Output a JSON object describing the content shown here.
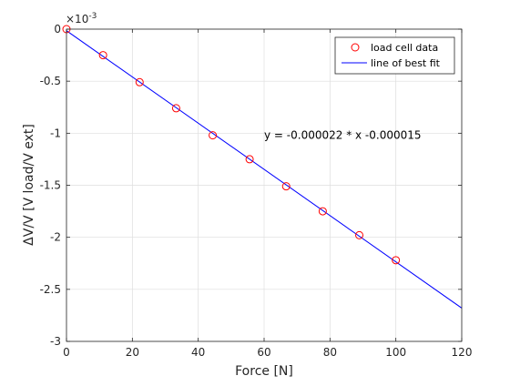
{
  "chart_data": {
    "type": "scatter",
    "xlabel": "Force [N]",
    "ylabel": "ΔV/V [V load/V ext]",
    "axis_exponent": "×10",
    "axis_exponent_power": "-3",
    "xlim": [
      0,
      120
    ],
    "ylim": [
      -3,
      0
    ],
    "grid": true,
    "legend_position": "top-right",
    "x_ticks": [
      0,
      20,
      40,
      60,
      80,
      100,
      120
    ],
    "x_tick_labels": [
      "0",
      "20",
      "40",
      "60",
      "80",
      "100",
      "120"
    ],
    "y_ticks": [
      0,
      -0.5,
      -1,
      -1.5,
      -2,
      -2.5,
      -3
    ],
    "y_tick_labels": [
      "0",
      "-0.5",
      "-1",
      "-1.5",
      "-2",
      "-2.5",
      "-3"
    ],
    "series": [
      {
        "name": "load cell data",
        "type": "scatter",
        "color": "#ff0000",
        "marker": "circle",
        "x": [
          0,
          11.1,
          22.2,
          33.3,
          44.4,
          55.6,
          66.7,
          77.8,
          88.9,
          100
        ],
        "y": [
          0,
          -0.25,
          -0.51,
          -0.76,
          -1.02,
          -1.25,
          -1.51,
          -1.75,
          -1.98,
          -2.22
        ]
      },
      {
        "name": "line of best fit",
        "type": "line",
        "color": "#0000ff",
        "x": [
          0,
          120
        ],
        "y": [
          -0.015,
          -2.68
        ]
      }
    ],
    "annotations": [
      {
        "text": "y = -0.000022 * x -0.000015",
        "x": 60,
        "y": -1.02
      }
    ]
  }
}
